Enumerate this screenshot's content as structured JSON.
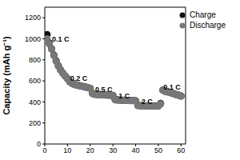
{
  "chart_data": {
    "type": "scatter",
    "y_label": "Capacity (mAh g⁻¹)",
    "x": [
      1,
      2,
      3,
      4,
      5,
      6,
      7,
      8,
      9,
      10,
      11,
      12,
      13,
      14,
      15,
      16,
      17,
      18,
      19,
      20,
      21,
      22,
      23,
      24,
      25,
      26,
      27,
      28,
      29,
      30,
      31,
      32,
      33,
      34,
      35,
      36,
      37,
      38,
      39,
      40,
      41,
      42,
      43,
      44,
      45,
      46,
      47,
      48,
      49,
      50,
      51,
      52,
      53,
      54,
      55,
      56,
      57,
      58,
      59,
      60
    ],
    "series": [
      {
        "name": "Charge",
        "color": "#111111",
        "marker": "circle",
        "values": [
          1040,
          960,
          905,
          845,
          790,
          742,
          702,
          672,
          646,
          622,
          592,
          577,
          566,
          561,
          556,
          551,
          546,
          541,
          536,
          529,
          480,
          473,
          471,
          469,
          468,
          467,
          466,
          465,
          463,
          461,
          421,
          419,
          418,
          417,
          416,
          415,
          414,
          413,
          413,
          411,
          366,
          365,
          364,
          363,
          363,
          362,
          362,
          361,
          361,
          361,
          385,
          512,
          502,
          496,
          491,
          483,
          476,
          469,
          463,
          456
        ]
      },
      {
        "name": "Discharge",
        "color": "#777777",
        "marker": "circle",
        "values": [
          1000,
          950,
          900,
          840,
          785,
          740,
          700,
          670,
          645,
          620,
          590,
          575,
          565,
          560,
          555,
          550,
          545,
          540,
          535,
          528,
          478,
          472,
          470,
          468,
          467,
          466,
          465,
          464,
          462,
          460,
          420,
          418,
          417,
          416,
          415,
          414,
          413,
          412,
          412,
          410,
          365,
          364,
          363,
          362,
          362,
          361,
          361,
          360,
          360,
          360,
          380,
          510,
          500,
          495,
          490,
          482,
          475,
          468,
          462,
          455
        ]
      }
    ],
    "xlim": [
      0,
      62
    ],
    "xticks": [
      0,
      10,
      20,
      30,
      40,
      50,
      60
    ],
    "ylim": [
      0,
      1300
    ],
    "yticks": [
      0,
      200,
      400,
      600,
      800,
      1000,
      1200
    ],
    "grid": false,
    "legend": "upper right",
    "annotations": [
      {
        "text": "0.1 C",
        "x": 7,
        "y": 1000
      },
      {
        "text": "0.2 C",
        "x": 15,
        "y": 625
      },
      {
        "text": "0.5 C",
        "x": 26,
        "y": 515
      },
      {
        "text": "1 C",
        "x": 35,
        "y": 460
      },
      {
        "text": "2 C",
        "x": 45,
        "y": 405
      },
      {
        "text": "0.1 C",
        "x": 56,
        "y": 545
      }
    ]
  }
}
